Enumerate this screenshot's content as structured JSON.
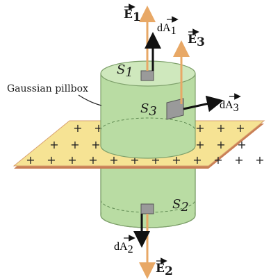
{
  "labels": {
    "pillbox": "Gaussian pillbox",
    "s1": "S",
    "s1_sub": "1",
    "s2": "S",
    "s2_sub": "2",
    "s3": "S",
    "s3_sub": "3",
    "e1": "E",
    "e1_sub": "1",
    "e2": "E",
    "e2_sub": "2",
    "e3": "E",
    "e3_sub": "3",
    "da1_d": "d",
    "da1": "A",
    "da1_sub": "1",
    "da2_d": "d",
    "da2": "A",
    "da2_sub": "2",
    "da3_d": "d",
    "da3": "A",
    "da3_sub": "3",
    "charge_sign": "+"
  },
  "colors": {
    "field_arrow": "#e8a866",
    "area_arrow": "#111111",
    "cylinder": "#b9dca3",
    "cylinder_top": "#cfe8bd",
    "plane": "#f6e394",
    "plane_edge": "#d8a070",
    "patch": "#9a9a9a"
  }
}
